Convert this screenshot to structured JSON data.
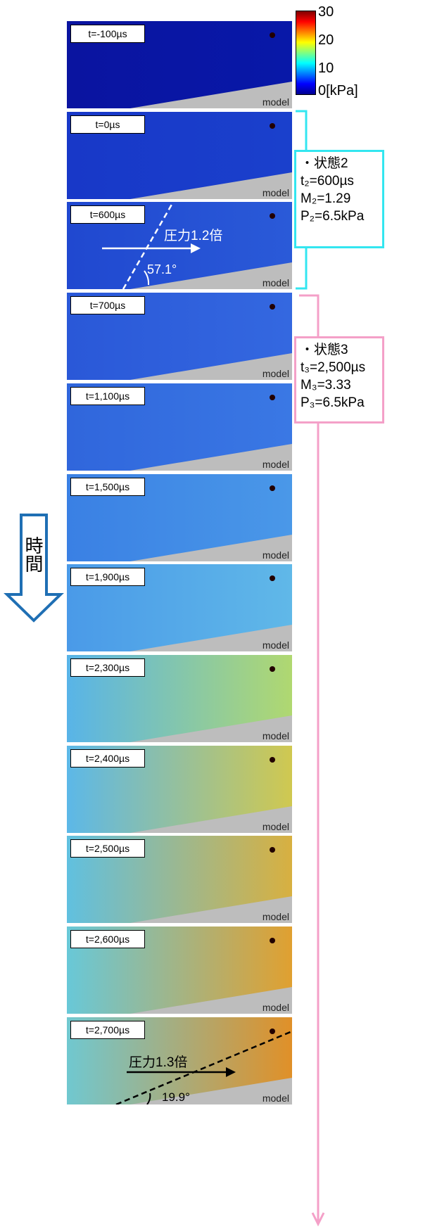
{
  "colorbar": {
    "ticks": [
      "30",
      "20",
      "10",
      "0[kPa]"
    ]
  },
  "time_arrow": "時間",
  "panels": [
    {
      "label": "t=-100µs",
      "model": "model"
    },
    {
      "label": "t=0µs",
      "model": "model"
    },
    {
      "label": "t=600µs",
      "model": "model",
      "annotation": {
        "arrow_text": "圧力1.2倍",
        "angle": "57.1°"
      }
    },
    {
      "label": "t=700µs",
      "model": "model"
    },
    {
      "label": "t=1,100µs",
      "model": "model"
    },
    {
      "label": "t=1,500µs",
      "model": "model"
    },
    {
      "label": "t=1,900µs",
      "model": "model"
    },
    {
      "label": "t=2,300µs",
      "model": "model"
    },
    {
      "label": "t=2,400µs",
      "model": "model"
    },
    {
      "label": "t=2,500µs",
      "model": "model"
    },
    {
      "label": "t=2,600µs",
      "model": "model"
    },
    {
      "label": "t=2,700µs",
      "model": "model",
      "annotation": {
        "arrow_text": "圧力1.3倍",
        "angle": "19.9°"
      }
    }
  ],
  "state2": {
    "lines": [
      "・状態2",
      "t₂=600µs",
      "M₂=1.29",
      "P₂=6.5kPa"
    ]
  },
  "state3": {
    "lines": [
      "・状態3",
      "t₃=2,500µs",
      "M₃=3.33",
      "P₃=6.5kPa"
    ]
  }
}
